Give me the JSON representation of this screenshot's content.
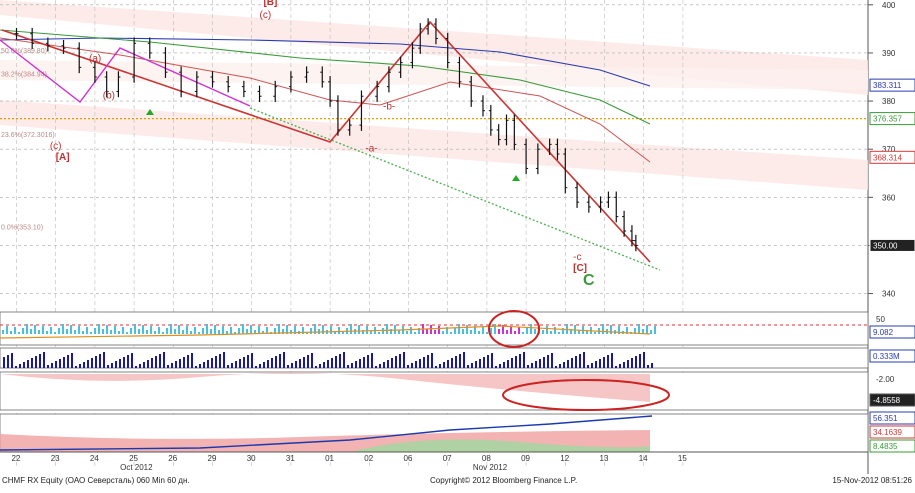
{
  "chart_data": {
    "type": "line",
    "title": "",
    "instrument": "CHMF RX Equity (ОАО Северсталь) 060 Min 60 дн.",
    "copyright": "Copyright© 2012 Bloomberg Finance L.P.",
    "timestamp": "15-Nov-2012 08:51:26",
    "x_tick_labels": [
      "22",
      "23",
      "24",
      "25",
      "26",
      "29",
      "30",
      "31",
      "01",
      "02",
      "06",
      "07",
      "08",
      "09",
      "12",
      "13",
      "14",
      "15"
    ],
    "month_labels": [
      {
        "label": "Oct 2012",
        "at": "25"
      },
      {
        "label": "Nov 2012",
        "at": "08"
      }
    ],
    "main_panel": {
      "ylim": [
        337,
        401
      ],
      "y_ticks": [
        340,
        350,
        360,
        370,
        380,
        390,
        400
      ],
      "last_price": 350.0,
      "price_labels": [
        {
          "value": 383.311,
          "text": "383.311",
          "color": "#2b3bb0"
        },
        {
          "value": 376.357,
          "text": "376.357",
          "color": "#3a9a3a"
        },
        {
          "value": 368.314,
          "text": "368.314",
          "color": "#d03a3a"
        },
        {
          "value": 350.0,
          "text": "350.00",
          "color": "#ffffff"
        }
      ],
      "fib_levels": [
        {
          "pct": "50.0%",
          "price": "389.80",
          "value": 389.8
        },
        {
          "pct": "38.2%",
          "price": "384.94",
          "value": 384.94
        },
        {
          "pct": "23.6%",
          "price": "372.3016",
          "value": 372.3
        },
        {
          "pct": "0.0%",
          "price": "353.10",
          "value": 353.1
        }
      ],
      "orange_dotted_level": 376.357,
      "wave_labels": [
        {
          "text": "(a)",
          "x": "23.6",
          "y": 381.5,
          "color": "#c03030"
        },
        {
          "text": "(b)",
          "x": "24.8",
          "y": 395.5,
          "color": "#c03030"
        },
        {
          "text": "(a)",
          "x": "01.85",
          "y": 388.2,
          "color": "#c03030"
        },
        {
          "text": "(b)",
          "x": "02.2",
          "y": 380.5,
          "color": "#c03030"
        },
        {
          "text": "(c)",
          "x": "00.85",
          "y": 370.0,
          "color": "#c03030"
        },
        {
          "text": "[A]",
          "x": "01.0",
          "y": 367.8,
          "color": "#c03030"
        },
        {
          "text": "[B]",
          "x": "06.3",
          "y": 400.0,
          "color": "#c03030"
        },
        {
          "text": "(c)",
          "x": "06.2",
          "y": 397.3,
          "color": "#c03030"
        },
        {
          "text": "-a-",
          "x": "08.9",
          "y": 369.5,
          "color": "#c03030"
        },
        {
          "text": "-b-",
          "x": "09.35",
          "y": 378.2,
          "color": "#c03030"
        },
        {
          "text": "[C]",
          "x": "14.2",
          "y": 344.7,
          "color": "#c03030"
        },
        {
          "text": "C",
          "x": "14.45",
          "y": 341.8,
          "color": "#3a9a3a"
        },
        {
          "text": "-c",
          "x": "14.2",
          "y": 347.0,
          "color": "#c03030"
        }
      ],
      "price_series": [
        [
          0.0,
          394
        ],
        [
          0.4,
          392
        ],
        [
          0.8,
          391.5
        ],
        [
          1.2,
          391
        ],
        [
          1.6,
          387
        ],
        [
          2.0,
          385
        ],
        [
          2.3,
          382
        ],
        [
          2.6,
          385
        ],
        [
          3.0,
          392
        ],
        [
          3.4,
          390
        ],
        [
          3.8,
          386
        ],
        [
          4.2,
          382
        ],
        [
          4.6,
          385
        ],
        [
          5.0,
          384
        ],
        [
          5.4,
          383
        ],
        [
          5.8,
          382
        ],
        [
          6.2,
          381
        ],
        [
          6.6,
          383
        ],
        [
          7.0,
          385
        ],
        [
          7.4,
          386
        ],
        [
          7.8,
          384
        ],
        [
          8.0,
          380
        ],
        [
          8.2,
          374
        ],
        [
          8.5,
          375
        ],
        [
          8.8,
          381
        ],
        [
          9.2,
          383
        ],
        [
          9.5,
          386
        ],
        [
          9.8,
          388
        ],
        [
          10.1,
          391
        ],
        [
          10.3,
          395
        ],
        [
          10.5,
          396
        ],
        [
          10.7,
          393
        ],
        [
          11.0,
          388
        ],
        [
          11.3,
          384
        ],
        [
          11.6,
          380
        ],
        [
          11.9,
          378
        ],
        [
          12.1,
          374
        ],
        [
          12.3,
          372
        ],
        [
          12.5,
          376
        ],
        [
          12.7,
          371
        ],
        [
          13.0,
          366
        ],
        [
          13.3,
          370
        ],
        [
          13.6,
          371
        ],
        [
          13.8,
          369
        ],
        [
          14.0,
          362
        ],
        [
          14.3,
          359
        ],
        [
          14.6,
          358
        ],
        [
          14.9,
          359
        ],
        [
          15.1,
          360
        ],
        [
          15.3,
          356
        ],
        [
          15.5,
          353
        ],
        [
          15.7,
          351
        ],
        [
          15.8,
          350
        ]
      ]
    },
    "sub_panels": [
      {
        "name": "histogram-oscillator",
        "ticks": [
          "50",
          "0"
        ],
        "label": "9.082",
        "label_color": "#2b3bb0"
      },
      {
        "name": "volume",
        "ticks": [],
        "label": "0.333M",
        "label_color": "#2b3bb0"
      },
      {
        "name": "momentum",
        "ticks": [
          "-2.00",
          "-4.8558"
        ],
        "label": "-4.8558",
        "label_color": "#ffffff"
      },
      {
        "name": "adx-dmi",
        "ticks": [],
        "labels": [
          {
            "text": "56.351",
            "color": "#2b3bb0"
          },
          {
            "text": "34.1639",
            "color": "#d03a3a"
          },
          {
            "text": "8.4835",
            "color": "#3a9a3a"
          }
        ]
      }
    ]
  }
}
